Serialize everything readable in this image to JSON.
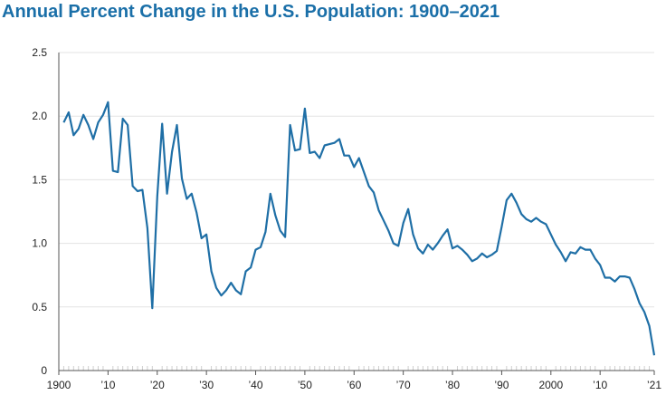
{
  "chart_data": {
    "type": "line",
    "title": "Annual Percent Change in the U.S. Population: 1900–2021",
    "xlabel": "",
    "ylabel": "",
    "xlim": [
      1900,
      2021
    ],
    "ylim": [
      0,
      2.5
    ],
    "yticks": [
      "0",
      "0.5",
      "1.0",
      "1.5",
      "2.0",
      "2.5"
    ],
    "yticks_values": [
      0,
      0.5,
      1.0,
      1.5,
      2.0,
      2.5
    ],
    "xticks": [
      "1900",
      "’10",
      "’20",
      "’30",
      "’40",
      "’50",
      "’60",
      "’70",
      "’80",
      "’90",
      "2000",
      "’10",
      "’21"
    ],
    "xticks_values": [
      1900,
      1910,
      1920,
      1930,
      1940,
      1950,
      1960,
      1970,
      1980,
      1990,
      2000,
      2010,
      2021
    ],
    "grid": "horizontal",
    "legend": "none",
    "line_color": "#1f6fa6",
    "grid_color": "#e3e3e3",
    "series": [
      {
        "x": [
          1901,
          1902,
          1903,
          1904,
          1905,
          1906,
          1907,
          1908,
          1909,
          1910,
          1911,
          1912,
          1913,
          1914,
          1915,
          1916,
          1917,
          1918,
          1919,
          1920,
          1921,
          1922,
          1923,
          1924,
          1925,
          1926,
          1927,
          1928,
          1929,
          1930,
          1931,
          1932,
          1933,
          1934,
          1935,
          1936,
          1937,
          1938,
          1939,
          1940,
          1941,
          1942,
          1943,
          1944,
          1945,
          1946,
          1947,
          1948,
          1949,
          1950,
          1951,
          1952,
          1953,
          1954,
          1955,
          1956,
          1957,
          1958,
          1959,
          1960,
          1961,
          1962,
          1963,
          1964,
          1965,
          1966,
          1967,
          1968,
          1969,
          1970,
          1971,
          1972,
          1973,
          1974,
          1975,
          1976,
          1977,
          1978,
          1979,
          1980,
          1981,
          1982,
          1983,
          1984,
          1985,
          1986,
          1987,
          1988,
          1989,
          1990,
          1991,
          1992,
          1993,
          1994,
          1995,
          1996,
          1997,
          1998,
          1999,
          2000,
          2001,
          2002,
          2003,
          2004,
          2005,
          2006,
          2007,
          2008,
          2009,
          2010,
          2011,
          2012,
          2013,
          2014,
          2015,
          2016,
          2017,
          2018,
          2019,
          2020,
          2021
        ],
        "values": [
          1.95,
          2.03,
          1.85,
          1.9,
          2.01,
          1.93,
          1.82,
          1.95,
          2.01,
          2.11,
          1.57,
          1.56,
          1.98,
          1.93,
          1.45,
          1.41,
          1.42,
          1.12,
          0.49,
          1.37,
          1.94,
          1.39,
          1.72,
          1.93,
          1.51,
          1.35,
          1.39,
          1.24,
          1.04,
          1.07,
          0.78,
          0.65,
          0.59,
          0.63,
          0.69,
          0.63,
          0.6,
          0.78,
          0.81,
          0.95,
          0.97,
          1.09,
          1.39,
          1.22,
          1.1,
          1.05,
          1.93,
          1.73,
          1.74,
          2.06,
          1.71,
          1.72,
          1.67,
          1.77,
          1.78,
          1.79,
          1.82,
          1.69,
          1.69,
          1.6,
          1.67,
          1.56,
          1.45,
          1.4,
          1.26,
          1.18,
          1.1,
          1.0,
          0.98,
          1.16,
          1.27,
          1.07,
          0.96,
          0.92,
          0.99,
          0.95,
          1.0,
          1.06,
          1.11,
          0.96,
          0.98,
          0.95,
          0.91,
          0.86,
          0.88,
          0.92,
          0.89,
          0.91,
          0.94,
          1.13,
          1.34,
          1.39,
          1.32,
          1.23,
          1.19,
          1.17,
          1.2,
          1.17,
          1.15,
          1.07,
          0.99,
          0.93,
          0.86,
          0.93,
          0.92,
          0.97,
          0.95,
          0.95,
          0.88,
          0.83,
          0.73,
          0.73,
          0.7,
          0.74,
          0.74,
          0.73,
          0.64,
          0.53,
          0.46,
          0.35,
          0.12
        ]
      }
    ]
  }
}
